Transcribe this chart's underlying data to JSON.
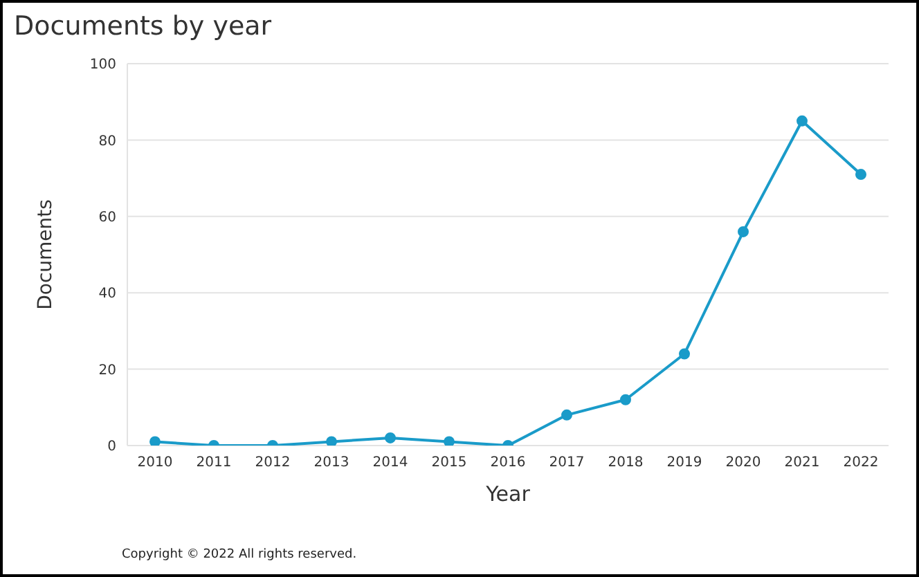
{
  "chart_data": {
    "type": "line",
    "title": "Documents by year",
    "xlabel": "Year",
    "ylabel": "Documents",
    "categories": [
      "2010",
      "2011",
      "2012",
      "2013",
      "2014",
      "2015",
      "2016",
      "2017",
      "2018",
      "2019",
      "2020",
      "2021",
      "2022"
    ],
    "series": [
      {
        "color": "#1a9bc9",
        "values": [
          1,
          0,
          0,
          1,
          2,
          1,
          0,
          8,
          12,
          24,
          56,
          85,
          71
        ]
      }
    ],
    "ylim": [
      0,
      100
    ],
    "yticks": [
      0,
      20,
      40,
      60,
      80,
      100
    ],
    "grid": "y",
    "marker": "circle",
    "line_style": "solid",
    "annotations": [
      "Copyright © 2022 All rights reserved."
    ]
  }
}
